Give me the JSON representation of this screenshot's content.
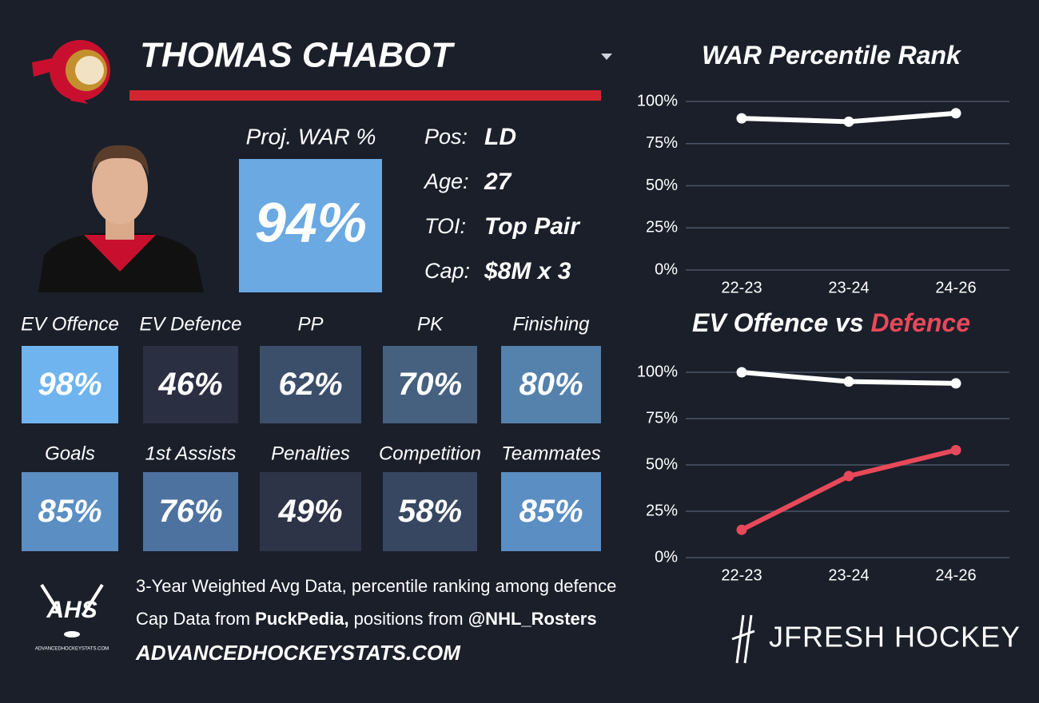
{
  "player": {
    "name": "THOMAS CHABOT"
  },
  "proj_war": {
    "label": "Proj. WAR %",
    "value": 94,
    "value_label": "94%",
    "color": "#6aa9e2"
  },
  "info": [
    {
      "label": "Pos:",
      "value": "LD"
    },
    {
      "label": "Age:",
      "value": "27"
    },
    {
      "label": "TOI:",
      "value": "Top Pair"
    },
    {
      "label": "Cap:",
      "value": "$8M x 3"
    }
  ],
  "stat_rows": [
    [
      {
        "label": "EV Offence",
        "value": 98,
        "value_label": "98%",
        "color": "#6fb4ee"
      },
      {
        "label": "EV Defence",
        "value": 46,
        "value_label": "46%",
        "color": "#2b2f42"
      },
      {
        "label": "PP",
        "value": 62,
        "value_label": "62%",
        "color": "#3b4f6b"
      },
      {
        "label": "PK",
        "value": 70,
        "value_label": "70%",
        "color": "#46607f"
      },
      {
        "label": "Finishing",
        "value": 80,
        "value_label": "80%",
        "color": "#5581ad"
      }
    ],
    [
      {
        "label": "Goals",
        "value": 85,
        "value_label": "85%",
        "color": "#5b8ec2"
      },
      {
        "label": "1st Assists",
        "value": 76,
        "value_label": "76%",
        "color": "#4e72a0"
      },
      {
        "label": "Penalties",
        "value": 49,
        "value_label": "49%",
        "color": "#2e3447"
      },
      {
        "label": "Competition",
        "value": 58,
        "value_label": "58%",
        "color": "#374761"
      },
      {
        "label": "Teammates",
        "value": 85,
        "value_label": "85%",
        "color": "#5b8ec2"
      }
    ]
  ],
  "footer": {
    "line1": "3-Year Weighted Avg Data, percentile ranking among defence",
    "line2": [
      "Cap Data from ",
      "PuckPedia,",
      " positions from ",
      "@NHL_Rosters"
    ],
    "line3": "ADVANCEDHOCKEYSTATS.COM",
    "ahs_logo": "AHS",
    "ahs_sub": "ADVANCEDHOCKEYSTATS.COM",
    "brand": "JFRESH HOCKEY"
  },
  "chart_data": [
    {
      "type": "line",
      "title": "WAR Percentile Rank",
      "categories": [
        "22-23",
        "23-24",
        "24-26"
      ],
      "series": [
        {
          "color": "#ffffff",
          "values": [
            90,
            88,
            93
          ]
        }
      ],
      "ylim": [
        0,
        100
      ],
      "yticks": [
        {
          "value": 0,
          "label": "0%"
        },
        {
          "value": 25,
          "label": "25%"
        },
        {
          "value": 50,
          "label": "50%"
        },
        {
          "value": 75,
          "label": "75%"
        },
        {
          "value": 100,
          "label": "100%"
        }
      ],
      "grid": true
    },
    {
      "type": "line",
      "title": "EV Offence vs",
      "title_highlight": "Defence",
      "categories": [
        "22-23",
        "23-24",
        "24-26"
      ],
      "series": [
        {
          "color": "#ffffff",
          "values": [
            100,
            95,
            94
          ]
        },
        {
          "color": "#e8495a",
          "values": [
            15,
            44,
            58
          ]
        }
      ],
      "ylim": [
        0,
        100
      ],
      "yticks": [
        {
          "value": 0,
          "label": "0%"
        },
        {
          "value": 25,
          "label": "25%"
        },
        {
          "value": 50,
          "label": "50%"
        },
        {
          "value": 75,
          "label": "75%"
        },
        {
          "value": 100,
          "label": "100%"
        }
      ],
      "grid": true
    }
  ]
}
